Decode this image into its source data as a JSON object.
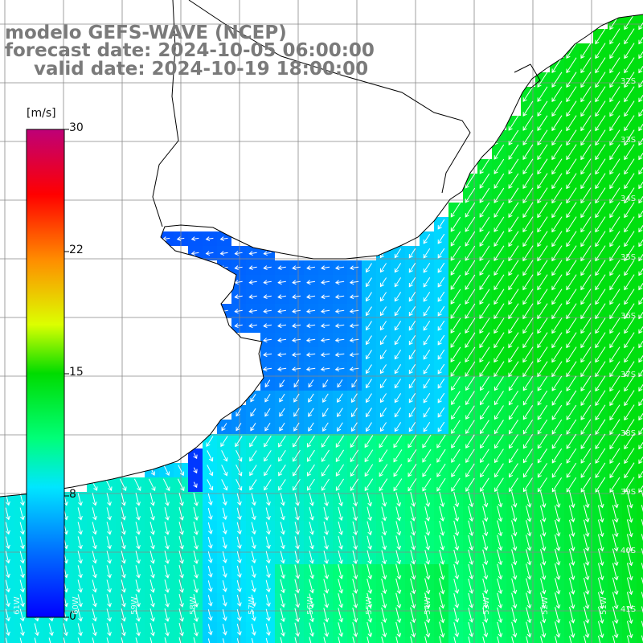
{
  "title": {
    "line1": "modelo GEFS-WAVE (NCEP)",
    "line2": "forecast date: 2024-10-05 06:00:00",
    "line3": "valid date: 2024-10-19 18:00:00"
  },
  "colorbar": {
    "unit": "[m/s]",
    "ticks": [
      "30",
      "22",
      "15",
      "8",
      "0"
    ],
    "min": 0,
    "max": 30,
    "stops": [
      "#0000ff",
      "#00aaff",
      "#00ffff",
      "#00ff66",
      "#00dd00",
      "#aaff00",
      "#ffff00",
      "#ffaa00",
      "#ff3300",
      "#ff0000",
      "#cc0066",
      "#bb0077"
    ]
  },
  "map": {
    "land_color": "#ffffff",
    "grid_color": "#888888",
    "coast_color": "#000000",
    "arrow_color": "#ffffff",
    "bottom_axis_labels": [
      "61W",
      "60W",
      "59W",
      "58W",
      "57W",
      "56W",
      "55W",
      "54W",
      "53W",
      "52W",
      "51W"
    ],
    "right_axis_labels": [
      "32S",
      "33S",
      "34S",
      "35S",
      "36S",
      "37S",
      "38S",
      "39S",
      "40S",
      "41S"
    ]
  }
}
